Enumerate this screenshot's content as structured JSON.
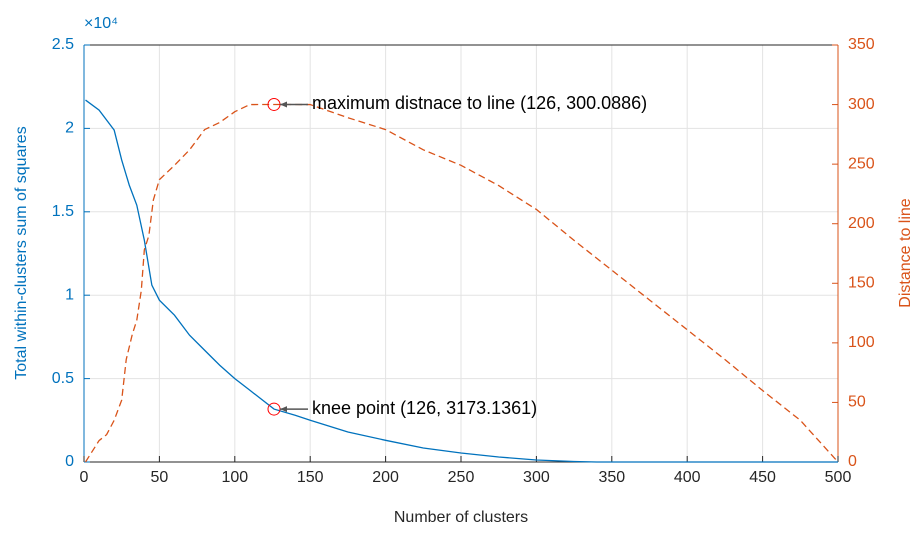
{
  "chart_data": {
    "type": "line",
    "xlabel": "Number of clusters",
    "ylabel": "Total within-clusters sum of squares",
    "y2label": "Distance to line",
    "yexponent": "×10⁴",
    "xlim": [
      0,
      500
    ],
    "xticks": [
      0,
      50,
      100,
      150,
      200,
      250,
      300,
      350,
      400,
      450,
      500
    ],
    "ylim": [
      0,
      25000
    ],
    "yticks": [
      0,
      {
        "value": 5000,
        "label": "0.5"
      },
      {
        "value": 10000,
        "label": "1"
      },
      {
        "value": 15000,
        "label": "1.5"
      },
      {
        "value": 20000,
        "label": "2"
      },
      {
        "value": 25000,
        "label": "2.5"
      }
    ],
    "y2lim": [
      0,
      350
    ],
    "y2ticks": [
      0,
      50,
      100,
      150,
      200,
      250,
      300,
      350
    ],
    "grid": true,
    "series": [
      {
        "color": "#0072BD",
        "axis": "y",
        "dash": false,
        "x": [
          1,
          10,
          20,
          25,
          30,
          35,
          40,
          45,
          50,
          60,
          70,
          80,
          90,
          100,
          110,
          126,
          140,
          150,
          175,
          200,
          225,
          250,
          275,
          300,
          325,
          340,
          400,
          500
        ],
        "values": [
          21700,
          21100,
          19900,
          18100,
          16600,
          15400,
          13300,
          10600,
          9700,
          8800,
          7600,
          6700,
          5800,
          5000,
          4300,
          3173.1361,
          2800,
          2500,
          1800,
          1300,
          840,
          540,
          300,
          120,
          30,
          0,
          0,
          0
        ]
      },
      {
        "color": "#D95319",
        "axis": "y2",
        "dash": true,
        "x": [
          1,
          10,
          15,
          20,
          25,
          28,
          32,
          35,
          38,
          40,
          43,
          46,
          50,
          60,
          70,
          80,
          90,
          100,
          110,
          126,
          150,
          175,
          200,
          225,
          250,
          275,
          300,
          325,
          350,
          375,
          400,
          425,
          450,
          475,
          500
        ],
        "values": [
          0,
          18,
          23,
          35,
          52,
          86,
          107,
          119,
          144,
          178,
          190,
          220,
          237,
          249,
          262,
          279,
          285,
          294,
          300,
          300.0886,
          300,
          289,
          279,
          262,
          249,
          232,
          212,
          186,
          161,
          136,
          111,
          86,
          60,
          35,
          0
        ]
      }
    ],
    "annotations": [
      {
        "text": "maximum distnace to line (126, 300.0886)",
        "x": 126,
        "y": 300.0886,
        "axis": "y2",
        "color": "#ff0000"
      },
      {
        "text": "knee point (126, 3173.1361)",
        "x": 126,
        "y": 3173.1361,
        "axis": "y",
        "color": "#ff0000"
      }
    ]
  }
}
